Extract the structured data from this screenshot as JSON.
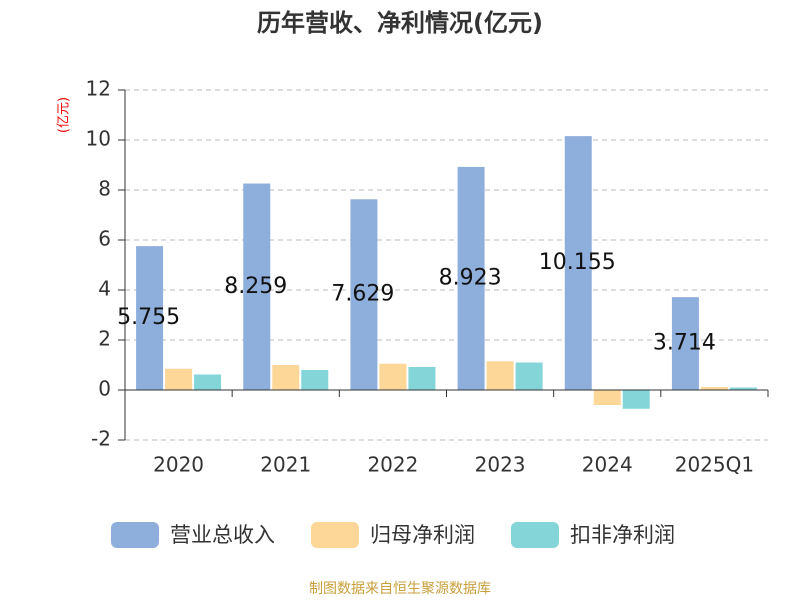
{
  "chart_data": {
    "type": "bar",
    "title": "历年营收、净利情况(亿元)",
    "y_label": "(亿元)",
    "footer": "制图数据来自恒生聚源数据库",
    "categories": [
      "2020",
      "2021",
      "2022",
      "2023",
      "2024",
      "2025Q1"
    ],
    "series": [
      {
        "name": "营业总收入",
        "color": "#8eaedb",
        "labels": true,
        "values": [
          5.755,
          8.259,
          7.629,
          8.923,
          10.155,
          3.714
        ]
      },
      {
        "name": "归母净利润",
        "color": "#fdd797",
        "labels": false,
        "values": [
          0.85,
          1.0,
          1.05,
          1.15,
          -0.6,
          0.12
        ]
      },
      {
        "name": "扣非净利润",
        "color": "#84d5d8",
        "labels": false,
        "values": [
          0.62,
          0.8,
          0.92,
          1.1,
          -0.75,
          0.1
        ]
      }
    ],
    "ylim": [
      -2,
      12
    ],
    "yticks": [
      -2,
      0,
      2,
      4,
      6,
      8,
      10,
      12
    ],
    "grid": true
  }
}
